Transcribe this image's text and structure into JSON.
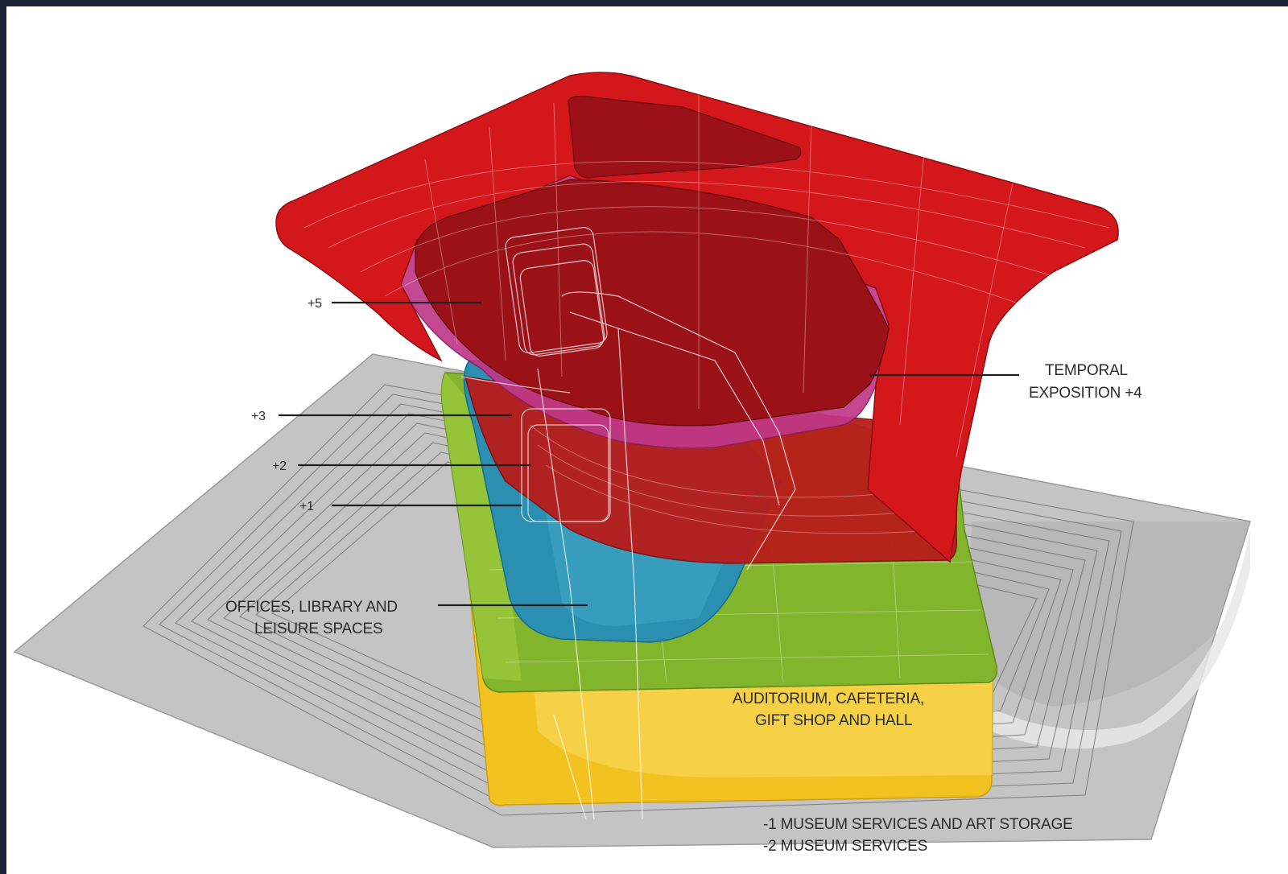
{
  "diagram": {
    "levels": {
      "plus5": "+5",
      "plus3": "+3",
      "plus2": "+2",
      "plus1": "+1"
    },
    "temporal_exposition": [
      "TEMPORAL",
      "EXPOSITION +4"
    ],
    "offices": [
      "OFFICES, LIBRARY AND",
      "LEISURE SPACES"
    ],
    "auditorium": [
      "AUDITORIUM, CAFETERIA,",
      "GIFT SHOP AND HALL"
    ],
    "basement": [
      "-1 MUSEUM SERVICES AND ART STORAGE",
      "-2 MUSEUM SERVICES"
    ],
    "colors": {
      "site": "#c4c4c4",
      "plinth_yellow": "#f2c320",
      "green": "#82b42c",
      "blue": "#2a8fb0",
      "mid_red": "#b81d1a",
      "magenta": "#c03888",
      "top_red": "#d4171b",
      "dark_red": "#9a1218"
    }
  }
}
